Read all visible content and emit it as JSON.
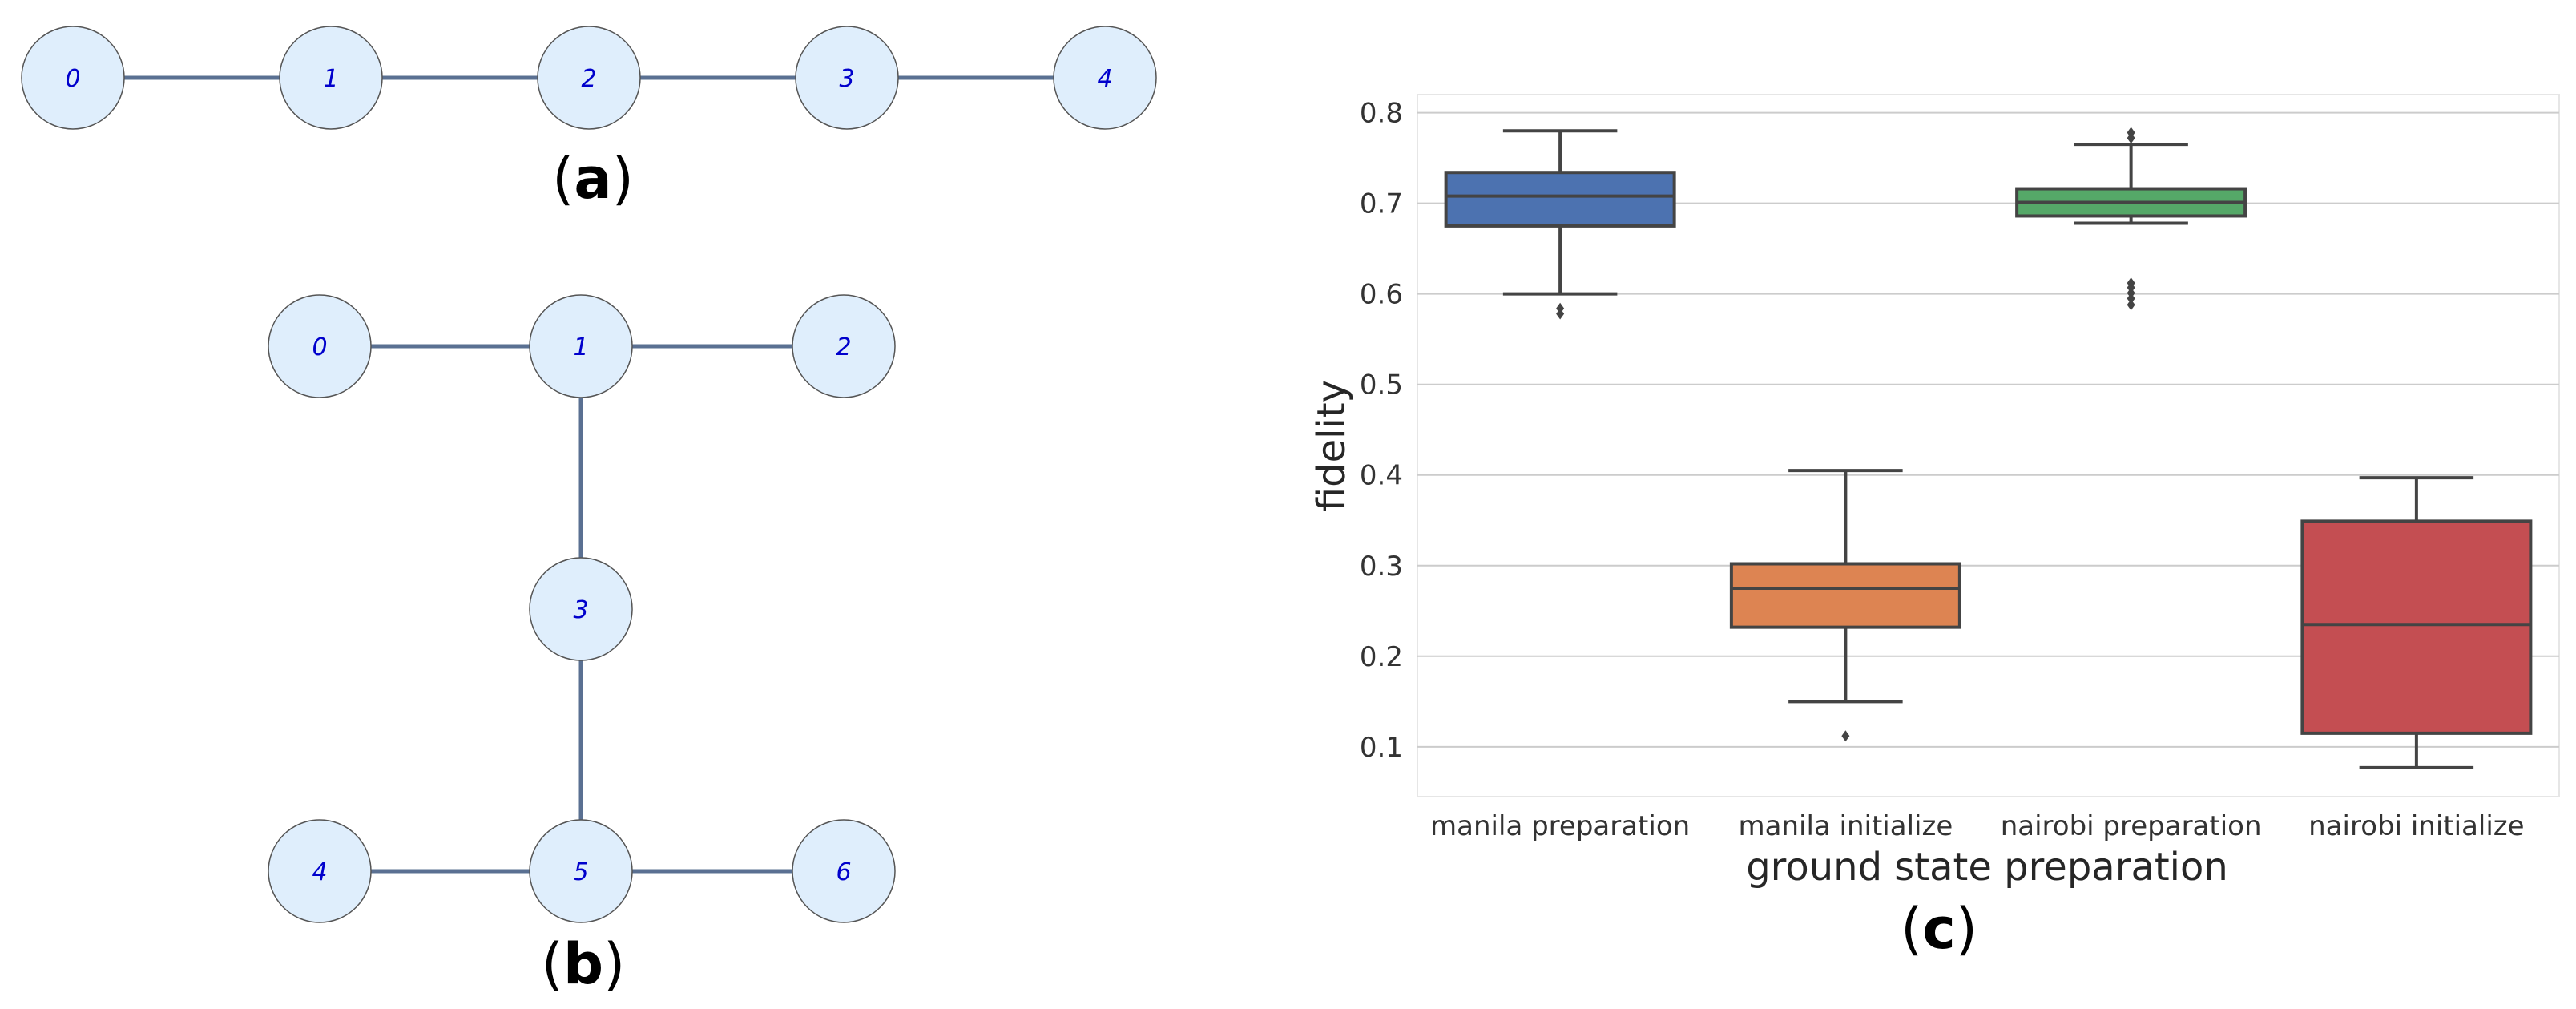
{
  "panels": {
    "a": "a",
    "b": "b",
    "c": "c"
  },
  "graph_a": {
    "nodes": [
      "0",
      "1",
      "2",
      "3",
      "4"
    ],
    "edges": [
      [
        "0",
        "1"
      ],
      [
        "1",
        "2"
      ],
      [
        "2",
        "3"
      ],
      [
        "3",
        "4"
      ]
    ]
  },
  "graph_b": {
    "nodes": [
      "0",
      "1",
      "2",
      "3",
      "4",
      "5",
      "6"
    ],
    "edges": [
      [
        "0",
        "1"
      ],
      [
        "1",
        "2"
      ],
      [
        "1",
        "3"
      ],
      [
        "3",
        "5"
      ],
      [
        "4",
        "5"
      ],
      [
        "5",
        "6"
      ]
    ]
  },
  "colors": {
    "node_fill": "#dfeefc",
    "node_stroke": "#555555",
    "edge": "#5a7092",
    "node_text": "#0000cc",
    "grid": "#cccccc",
    "box_edge": "#444444"
  },
  "chart_data": {
    "type": "box",
    "title": "",
    "xlabel": "ground state preparation",
    "ylabel": "fidelity",
    "ylim": [
      0.045,
      0.82
    ],
    "yticks": [
      0.1,
      0.2,
      0.3,
      0.4,
      0.5,
      0.6,
      0.7,
      0.8
    ],
    "ytick_labels": [
      "0.1",
      "0.2",
      "0.3",
      "0.4",
      "0.5",
      "0.6",
      "0.7",
      "0.8"
    ],
    "grid": "horizontal",
    "categories": [
      "manila preparation",
      "manila initialize",
      "nairobi preparation",
      "nairobi initialize"
    ],
    "series": [
      {
        "name": "manila preparation",
        "color": "#4c72b0",
        "whisker_low": 0.6,
        "q1": 0.675,
        "median": 0.708,
        "q3": 0.734,
        "whisker_high": 0.78,
        "outliers": [
          0.578,
          0.584
        ]
      },
      {
        "name": "manila initialize",
        "color": "#dd8452",
        "whisker_low": 0.15,
        "q1": 0.232,
        "median": 0.275,
        "q3": 0.302,
        "whisker_high": 0.405,
        "outliers": [
          0.112
        ]
      },
      {
        "name": "nairobi preparation",
        "color": "#55a868",
        "whisker_low": 0.678,
        "q1": 0.686,
        "median": 0.701,
        "q3": 0.716,
        "whisker_high": 0.765,
        "outliers": [
          0.588,
          0.595,
          0.601,
          0.607,
          0.612,
          0.772,
          0.778
        ]
      },
      {
        "name": "nairobi initialize",
        "color": "#c44e52",
        "whisker_low": 0.077,
        "q1": 0.115,
        "median": 0.235,
        "q3": 0.349,
        "whisker_high": 0.397,
        "outliers": []
      }
    ]
  }
}
